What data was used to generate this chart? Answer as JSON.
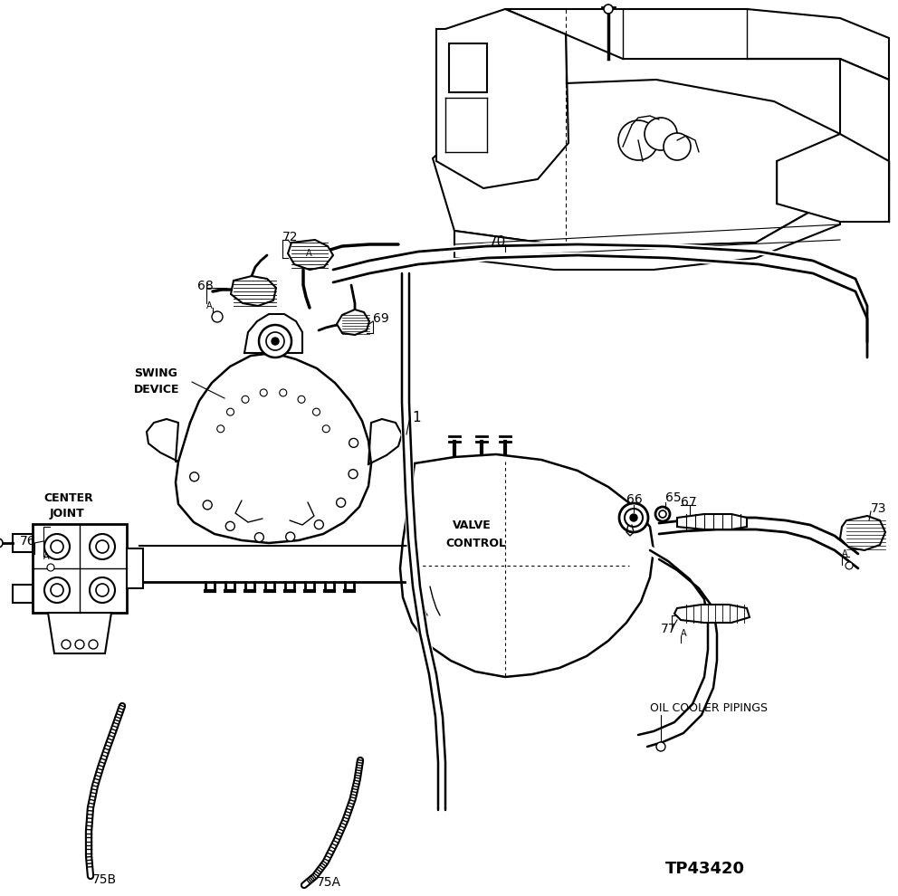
{
  "background_color": "#ffffff",
  "line_color": "#000000",
  "part_number": "TP43420",
  "labels": {
    "swing_device": "SWING\nDEVICE",
    "center_joint": "CENTER\nJOINT",
    "valve_control": "VALVE\nCONTROL",
    "oil_cooler": "OIL COOLER PIPINGS",
    "num_1": "1",
    "num_65": "65",
    "num_66": "66",
    "num_67": "67",
    "num_68": "68",
    "num_69": "69",
    "num_70": "70",
    "num_72": "72",
    "num_73": "73",
    "num_75a": "75A",
    "num_75b": "75B",
    "num_76": "76",
    "num_77": "77"
  },
  "figsize": [
    9.92,
    9.9
  ],
  "dpi": 100
}
